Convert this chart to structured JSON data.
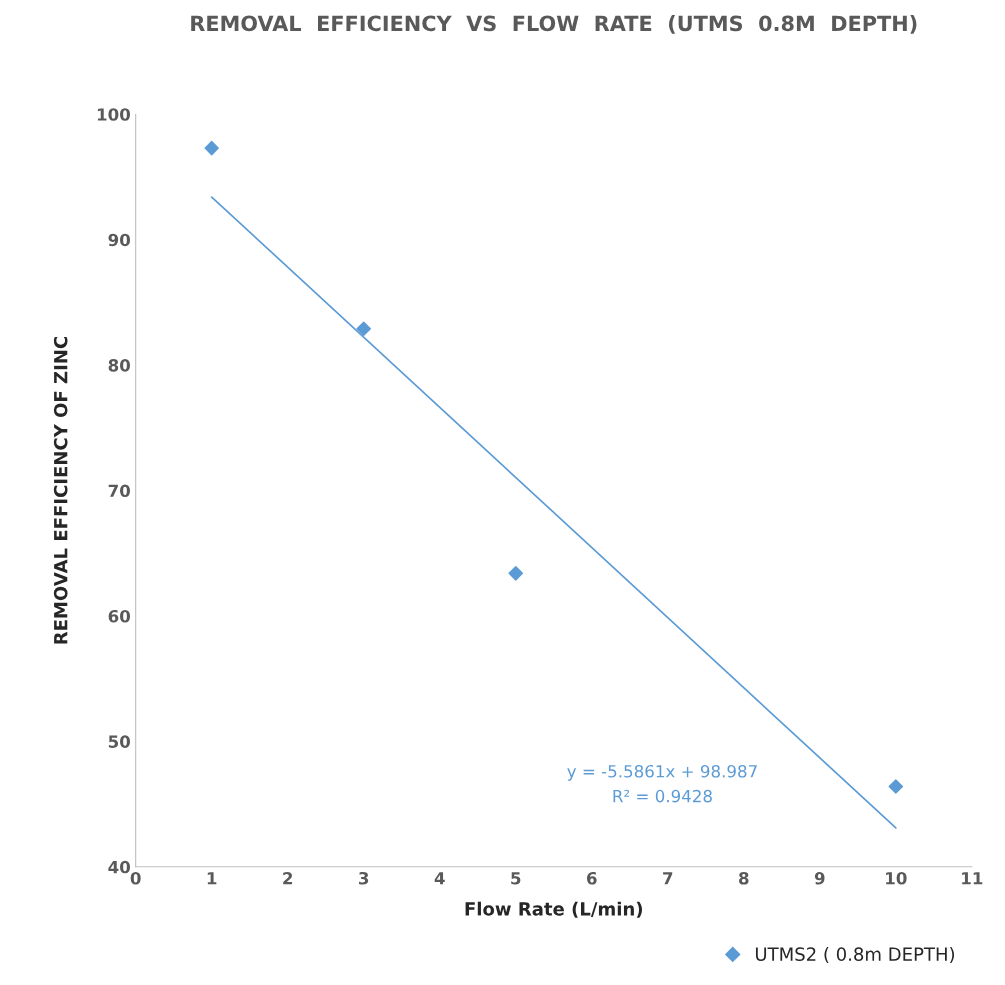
{
  "chart_data": {
    "type": "scatter",
    "title": "REMOVAL  EFFICIENCY  VS  FLOW  RATE  (UTMS  0.8M  DEPTH)",
    "xlabel": "Flow Rate (L/min)",
    "ylabel": "REMOVAL EFFICIENCY OF ZINC",
    "series": [
      {
        "name": "UTMS2 ( 0.8m DEPTH)",
        "color": "#5b9bd5",
        "marker": "diamond",
        "x": [
          1,
          3,
          5,
          10
        ],
        "values": [
          97.3,
          82.9,
          63.4,
          46.4
        ]
      },
      {
        "type": "line",
        "color": "#5b9bd5",
        "marker": "none",
        "line_style": "solid",
        "x": [
          1,
          10
        ],
        "values": [
          93.4,
          43.1
        ]
      }
    ],
    "xlim": [
      0,
      11
    ],
    "xticks": [
      0,
      1,
      2,
      3,
      4,
      5,
      6,
      7,
      8,
      9,
      10,
      11
    ],
    "ylim": [
      40,
      100
    ],
    "yticks": [
      40,
      50,
      60,
      70,
      80,
      90,
      100
    ],
    "grid": false,
    "legend": "bottom right",
    "annotations": [
      "y = -5.5861x + 98.987",
      "R² = 0.9428"
    ]
  }
}
